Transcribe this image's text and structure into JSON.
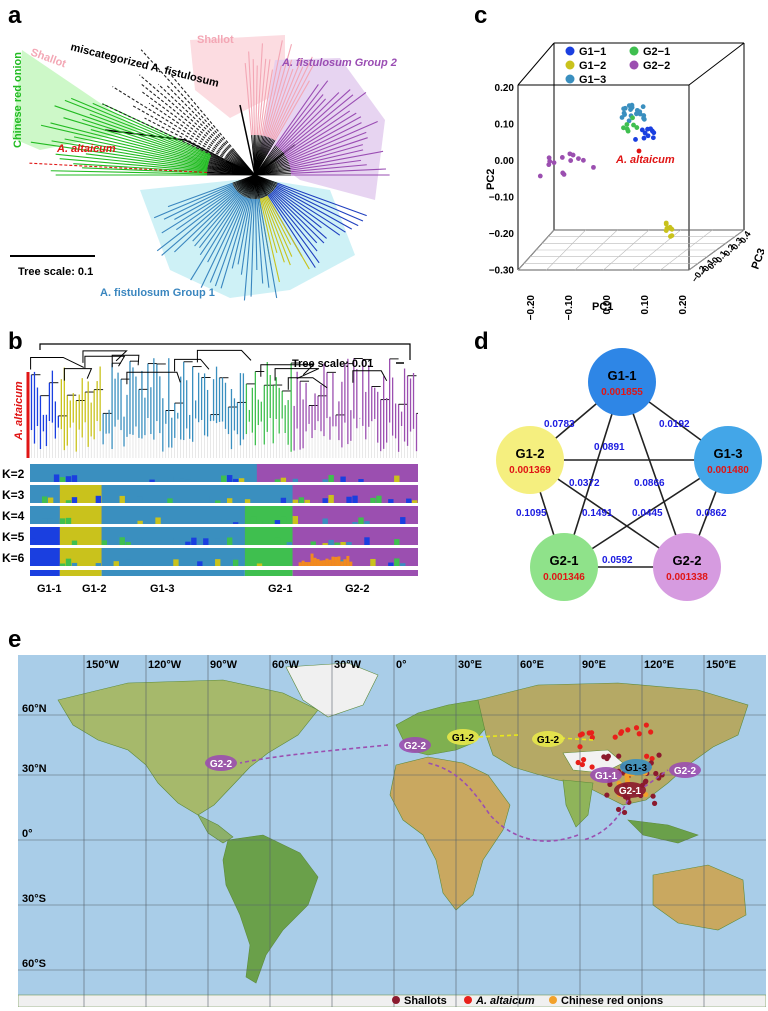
{
  "panels": {
    "a": "a",
    "b": "b",
    "c": "c",
    "d": "d",
    "e": "e"
  },
  "panel_a": {
    "tree_scale": "Tree scale: 0.1",
    "labels": {
      "red_onion": "Chinese red onion",
      "shallot_left": "Shallot",
      "miscat": "miscategorized A. fistulosum",
      "shallot_top": "Shallot",
      "group2": "A. fistulosum Group 2",
      "altaicum": "A. altaicum",
      "group1": "A. fistulosum Group 1"
    },
    "colors": {
      "green": "#22bb22",
      "pink": "#f3a7b5",
      "purple": "#9a4db3",
      "blue": "#3a86bf",
      "navy": "#1f3fbf",
      "olive": "#c8c21a",
      "red": "#e01515"
    }
  },
  "panel_b": {
    "tree_scale": "Tree scale: 0.01",
    "altaicum": "A. altaicum",
    "k_labels": [
      "K=2",
      "K=3",
      "K=4",
      "K=5",
      "K=6"
    ],
    "groups": [
      "G1-1",
      "G1-2",
      "G1-3",
      "G2-1",
      "G2-2"
    ]
  },
  "panel_c": {
    "legend": [
      "G1−1",
      "G2−1",
      "G1−2",
      "G2−2",
      "G1−3"
    ],
    "legend_colors": [
      "#1a3fe0",
      "#3fbf4f",
      "#c9c21c",
      "#9b4fb0",
      "#3a8fbf"
    ],
    "altaicum": "A. altaicum",
    "xlabel": "PC1",
    "ylabel": "PC2",
    "zlabel": "PC3",
    "y_ticks": [
      "0.20",
      "0.10",
      "0.00",
      "−0.10",
      "−0.20",
      "−0.30"
    ],
    "x_ticks": [
      "−0.20",
      "−0.10",
      "0.00",
      "0.10",
      "0.20"
    ],
    "z_ticks": [
      "−0.2",
      "−0.1",
      "0.0",
      "0.1",
      "0.2",
      "0.3",
      "0.4"
    ]
  },
  "panel_d": {
    "nodes": [
      {
        "id": "G1-1",
        "value": "0.001855",
        "color": "#2e86e6"
      },
      {
        "id": "G1-2",
        "value": "0.001369",
        "color": "#f5ef7f"
      },
      {
        "id": "G1-3",
        "value": "0.001480",
        "color": "#43a6e8"
      },
      {
        "id": "G2-1",
        "value": "0.001346",
        "color": "#8fe28a"
      },
      {
        "id": "G2-2",
        "value": "0.001338",
        "color": "#d69be0"
      }
    ],
    "edges": {
      "g11_g12": "0.0783",
      "g11_g13": "0.0192",
      "g12_g13": "0.0891",
      "g11_g21": "0.0372",
      "g11_g22": "0.0866",
      "g12_g21": "0.1095",
      "g12_g22": "0.1491",
      "g13_g21": "0.0445",
      "g13_g22": "0.0862",
      "g21_g22": "0.0592"
    }
  },
  "panel_e": {
    "lon_labels": [
      "150°W",
      "120°W",
      "90°W",
      "60°W",
      "30°W",
      "0°",
      "30°E",
      "60°E",
      "90°E",
      "120°E",
      "150°E"
    ],
    "lat_labels": [
      "60°N",
      "30°N",
      "0°",
      "30°S",
      "60°S"
    ],
    "map_labels": {
      "g22_americas": "G2-2",
      "g22_europe": "G2-2",
      "g12_west": "G1-2",
      "g12_east": "G1-2",
      "g11": "G1-1",
      "g13": "G1-3",
      "g21": "G2-1",
      "g22_east": "G2-2"
    },
    "legend": [
      {
        "label": "Shallots",
        "color": "#8b1a2e"
      },
      {
        "label": "A. altaicum",
        "color": "#e8201a"
      },
      {
        "label": "Chinese red onions",
        "color": "#f2a12a"
      }
    ]
  }
}
